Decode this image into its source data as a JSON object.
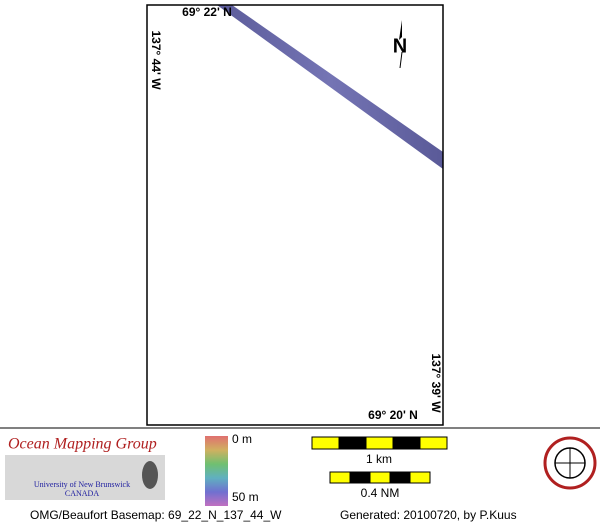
{
  "map": {
    "corner_labels": {
      "top_lat": "69° 22' N",
      "left_lon": "137° 44' W",
      "right_lon": "137° 39' W",
      "bottom_lat": "69° 20' N"
    },
    "north_arrow": "N",
    "logo": {
      "title": "Ocean Mapping Group",
      "university": "University of New Brunswick",
      "country": "CANADA"
    },
    "depth_scale": {
      "top": "0 m",
      "bottom": "50 m"
    },
    "scale_bars": {
      "metric": "1 km",
      "nautical": "0.4 NM"
    },
    "footer": {
      "basemap": "OMG/Beaufort Basemap: 69_22_N_137_44_W",
      "generated": "Generated: 20100720, by P.Kuus"
    }
  }
}
